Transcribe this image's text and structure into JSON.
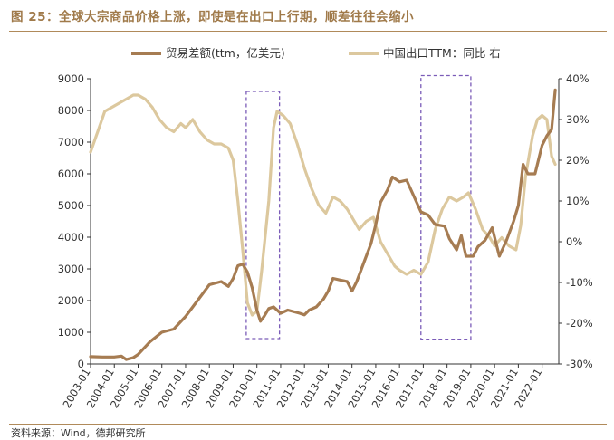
{
  "figure": {
    "title": "图 25：全球大宗商品价格上涨，即使是在出口上行期，顺差往往会缩小",
    "source": "资料来源：Wind，德邦研究所"
  },
  "colors": {
    "trade_balance": "#a67c52",
    "export_yoy": "#dcc89e",
    "highlight_box": "#7b5cb8",
    "axis": "#333333"
  },
  "chart_data": {
    "type": "line",
    "x_ticks": [
      "2003-01",
      "2004-01",
      "2005-01",
      "2006-01",
      "2007-01",
      "2008-01",
      "2009-01",
      "2010-01",
      "2011-01",
      "2012-01",
      "2013-01",
      "2014-01",
      "2015-01",
      "2016-01",
      "2017-01",
      "2018-01",
      "2019-01",
      "2020-01",
      "2021-01",
      "2022-01"
    ],
    "xlim": [
      2003.0,
      2022.7
    ],
    "y_left": {
      "label": "",
      "ylim": [
        0,
        9000
      ],
      "ticks": [
        0,
        1000,
        2000,
        3000,
        4000,
        5000,
        6000,
        7000,
        8000,
        9000
      ]
    },
    "y_right": {
      "label": "",
      "ylim": [
        -30,
        40
      ],
      "ticks": [
        "-30%",
        "-20%",
        "-10%",
        "0%",
        "10%",
        "20%",
        "30%",
        "40%"
      ],
      "tick_values": [
        -30,
        -20,
        -10,
        0,
        10,
        20,
        30,
        40
      ]
    },
    "legend": {
      "placement": "top"
    },
    "series": [
      {
        "name": "贸易差额(ttm，亿美元)",
        "axis": "left",
        "points": [
          [
            2003.0,
            230
          ],
          [
            2003.5,
            220
          ],
          [
            2004.0,
            220
          ],
          [
            2004.3,
            250
          ],
          [
            2004.5,
            140
          ],
          [
            2004.8,
            200
          ],
          [
            2005.0,
            300
          ],
          [
            2005.5,
            700
          ],
          [
            2006.0,
            1000
          ],
          [
            2006.5,
            1100
          ],
          [
            2007.0,
            1500
          ],
          [
            2007.5,
            2000
          ],
          [
            2008.0,
            2500
          ],
          [
            2008.5,
            2600
          ],
          [
            2008.8,
            2450
          ],
          [
            2009.0,
            2700
          ],
          [
            2009.2,
            3100
          ],
          [
            2009.4,
            3150
          ],
          [
            2009.6,
            2900
          ],
          [
            2009.8,
            2400
          ],
          [
            2010.0,
            1700
          ],
          [
            2010.15,
            1350
          ],
          [
            2010.3,
            1500
          ],
          [
            2010.5,
            1750
          ],
          [
            2010.7,
            1800
          ],
          [
            2011.0,
            1600
          ],
          [
            2011.3,
            1700
          ],
          [
            2011.8,
            1600
          ],
          [
            2012.0,
            1550
          ],
          [
            2012.2,
            1700
          ],
          [
            2012.5,
            1800
          ],
          [
            2012.8,
            2050
          ],
          [
            2013.0,
            2300
          ],
          [
            2013.2,
            2700
          ],
          [
            2013.5,
            2650
          ],
          [
            2013.8,
            2600
          ],
          [
            2014.0,
            2300
          ],
          [
            2014.2,
            2600
          ],
          [
            2014.5,
            3200
          ],
          [
            2014.8,
            3800
          ],
          [
            2015.0,
            4400
          ],
          [
            2015.2,
            5100
          ],
          [
            2015.5,
            5500
          ],
          [
            2015.7,
            5900
          ],
          [
            2016.0,
            5750
          ],
          [
            2016.3,
            5800
          ],
          [
            2016.6,
            5300
          ],
          [
            2016.9,
            4800
          ],
          [
            2017.2,
            4700
          ],
          [
            2017.5,
            4400
          ],
          [
            2017.9,
            4350
          ],
          [
            2018.1,
            3950
          ],
          [
            2018.4,
            3600
          ],
          [
            2018.6,
            4050
          ],
          [
            2018.8,
            3400
          ],
          [
            2019.1,
            3400
          ],
          [
            2019.3,
            3700
          ],
          [
            2019.6,
            3900
          ],
          [
            2019.9,
            4300
          ],
          [
            2020.2,
            3400
          ],
          [
            2020.5,
            3900
          ],
          [
            2020.8,
            4500
          ],
          [
            2021.0,
            5000
          ],
          [
            2021.2,
            6300
          ],
          [
            2021.4,
            6000
          ],
          [
            2021.7,
            6000
          ],
          [
            2022.0,
            6900
          ],
          [
            2022.2,
            7200
          ],
          [
            2022.4,
            7400
          ],
          [
            2022.55,
            8650
          ]
        ]
      },
      {
        "name": "中国出口TTM：同比 右",
        "axis": "right",
        "points": [
          [
            2003.0,
            22
          ],
          [
            2003.3,
            27
          ],
          [
            2003.6,
            32
          ],
          [
            2003.9,
            33
          ],
          [
            2004.2,
            34
          ],
          [
            2004.5,
            35
          ],
          [
            2004.8,
            36
          ],
          [
            2005.0,
            36
          ],
          [
            2005.3,
            35
          ],
          [
            2005.6,
            33
          ],
          [
            2005.9,
            30
          ],
          [
            2006.2,
            28
          ],
          [
            2006.5,
            27
          ],
          [
            2006.8,
            29
          ],
          [
            2007.0,
            28
          ],
          [
            2007.3,
            30
          ],
          [
            2007.6,
            27
          ],
          [
            2007.9,
            25
          ],
          [
            2008.2,
            24
          ],
          [
            2008.5,
            24
          ],
          [
            2008.8,
            23
          ],
          [
            2009.0,
            20
          ],
          [
            2009.2,
            10
          ],
          [
            2009.4,
            -2
          ],
          [
            2009.6,
            -15
          ],
          [
            2009.8,
            -18
          ],
          [
            2010.0,
            -17
          ],
          [
            2010.2,
            -7
          ],
          [
            2010.5,
            10
          ],
          [
            2010.7,
            28
          ],
          [
            2010.85,
            32
          ],
          [
            2011.1,
            31
          ],
          [
            2011.4,
            29
          ],
          [
            2011.7,
            24
          ],
          [
            2012.0,
            18
          ],
          [
            2012.3,
            13
          ],
          [
            2012.6,
            9
          ],
          [
            2012.9,
            7
          ],
          [
            2013.2,
            11
          ],
          [
            2013.5,
            10
          ],
          [
            2013.8,
            8
          ],
          [
            2014.0,
            6
          ],
          [
            2014.3,
            3
          ],
          [
            2014.6,
            5
          ],
          [
            2014.9,
            6
          ],
          [
            2015.2,
            0
          ],
          [
            2015.5,
            -3
          ],
          [
            2015.8,
            -6
          ],
          [
            2016.0,
            -7
          ],
          [
            2016.3,
            -8
          ],
          [
            2016.6,
            -7
          ],
          [
            2016.9,
            -8
          ],
          [
            2017.2,
            -5
          ],
          [
            2017.5,
            3
          ],
          [
            2017.8,
            8
          ],
          [
            2018.1,
            11
          ],
          [
            2018.4,
            10
          ],
          [
            2018.7,
            11
          ],
          [
            2018.9,
            12
          ],
          [
            2019.2,
            8
          ],
          [
            2019.5,
            3
          ],
          [
            2019.8,
            1
          ],
          [
            2020.0,
            -1
          ],
          [
            2020.3,
            1
          ],
          [
            2020.6,
            -1
          ],
          [
            2020.9,
            -2
          ],
          [
            2021.1,
            4
          ],
          [
            2021.3,
            16
          ],
          [
            2021.6,
            26
          ],
          [
            2021.8,
            30
          ],
          [
            2022.0,
            31
          ],
          [
            2022.2,
            30
          ],
          [
            2022.4,
            21
          ],
          [
            2022.55,
            19
          ]
        ]
      }
    ],
    "highlight_boxes": [
      {
        "x0": 2009.55,
        "x1": 2010.95,
        "y0": 800,
        "y1": 8600
      },
      {
        "x0": 2016.9,
        "x1": 2019.0,
        "y0": 780,
        "y1": 9100
      }
    ]
  }
}
